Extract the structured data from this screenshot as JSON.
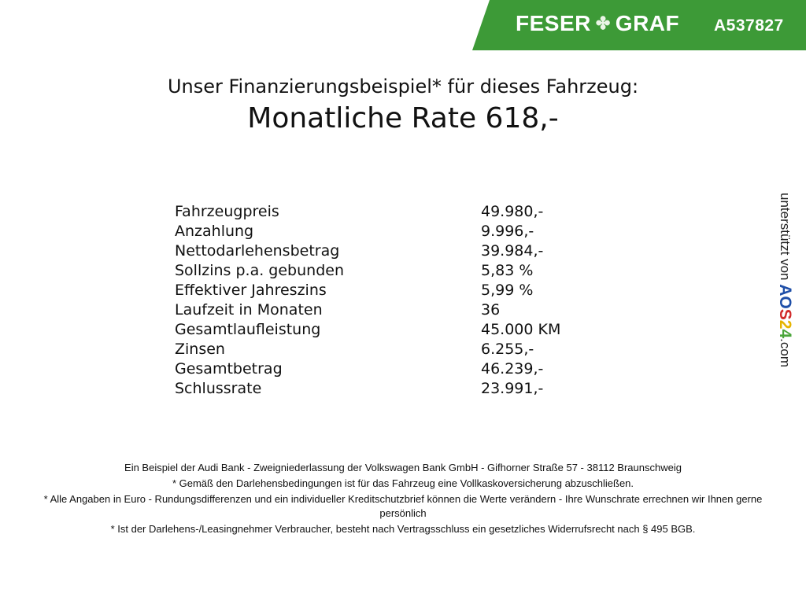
{
  "header": {
    "brand": "FESER",
    "brand2": "GRAF",
    "brand_icon": "clover-icon",
    "code": "A537827",
    "color": "#3d9a37"
  },
  "title": "Unser Finanzierungsbeispiel* für dieses Fahrzeug:",
  "subtitle": "Monatliche Rate 618,-",
  "rows": [
    {
      "label": "Fahrzeugpreis",
      "value": "49.980,-"
    },
    {
      "label": "Anzahlung",
      "value": "9.996,-"
    },
    {
      "label": "Nettodarlehensbetrag",
      "value": "39.984,-"
    },
    {
      "label": "Sollzins p.a. gebunden",
      "value": "5,83 %"
    },
    {
      "label": "Effektiver Jahreszins",
      "value": "5,99 %"
    },
    {
      "label": "Laufzeit in Monaten",
      "value": "36"
    },
    {
      "label": "Gesamtlaufleistung",
      "value": "45.000 KM"
    },
    {
      "label": "Zinsen",
      "value": "6.255,-"
    },
    {
      "label": "Gesamtbetrag",
      "value": "46.239,-"
    },
    {
      "label": "Schlussrate",
      "value": "23.991,-"
    }
  ],
  "side": {
    "text": "unterstützt von",
    "logo": "AOS24",
    "suffix": ".com"
  },
  "footer": [
    "Ein Beispiel der Audi Bank - Zweigniederlassung der Volkswagen Bank GmbH - Gifhorner Straße 57 - 38112 Braunschweig",
    "* Gemäß den Darlehensbedingungen ist für das Fahrzeug eine Vollkaskoversicherung abzuschließen.",
    "* Alle Angaben in Euro - Rundungsdifferenzen und ein individueller Kreditschutzbrief können die Werte verändern - Ihre Wunschrate errechnen wir Ihnen gerne persönlich",
    "* Ist der Darlehens-/Leasingnehmer Verbraucher, besteht nach Vertragsschluss ein gesetzliches Widerrufsrecht nach § 495 BGB."
  ]
}
